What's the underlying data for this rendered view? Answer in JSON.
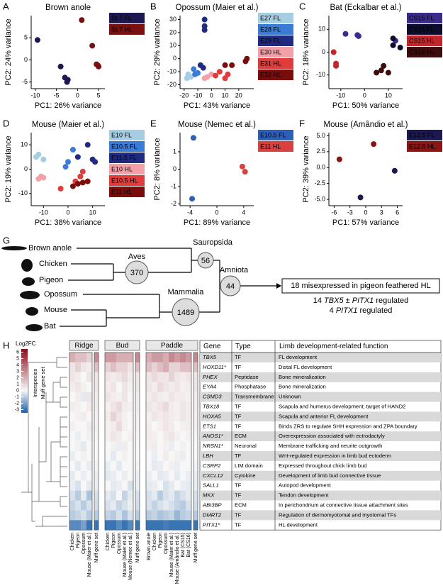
{
  "panel_labels": [
    "A",
    "B",
    "C",
    "D",
    "E",
    "F",
    "G",
    "H"
  ],
  "chart_data": [
    {
      "type": "scatter",
      "title": "Brown anole",
      "x_label": "PC1: 26% variance",
      "y_label": "PC2: 24% variance",
      "xlim": [
        -11,
        6.5
      ],
      "xticks": [
        -10,
        -5,
        0,
        5
      ],
      "ylim": [
        -6.5,
        10
      ],
      "yticks": [
        -5,
        0,
        5
      ],
      "series": [
        {
          "name": "St.7 FL",
          "color": "#1c1850",
          "x": [
            -9.5,
            -4,
            -3,
            -2.5,
            -2.3
          ],
          "y": [
            4.5,
            -1.5,
            -4,
            -5,
            -4.5
          ]
        },
        {
          "name": "St.7 HL",
          "color": "#7a1010",
          "x": [
            1,
            3.5,
            4.5,
            5,
            4.8
          ],
          "y": [
            9,
            3.2,
            -1,
            -1.5,
            -1.2
          ]
        }
      ]
    },
    {
      "type": "scatter",
      "title": "Opossum (Maier et al.)",
      "x_label": "PC1: 43% variance",
      "y_label": "PC2: 29% variance",
      "xlim": [
        -23,
        31
      ],
      "xticks": [
        -20,
        -10,
        0,
        10,
        20
      ],
      "ylim": [
        -23,
        33
      ],
      "yticks": [
        -20,
        -10,
        0,
        10,
        20,
        30
      ],
      "series": [
        {
          "name": "E27 FL",
          "color": "#a6cee3",
          "x": [
            -18,
            -17,
            -15
          ],
          "y": [
            -15,
            -12,
            -14
          ]
        },
        {
          "name": "E28 FL",
          "color": "#3a7bd5",
          "x": [
            -12,
            -10,
            -13
          ],
          "y": [
            -12,
            -11,
            -8
          ]
        },
        {
          "name": "E29 FL",
          "color": "#1f2a80",
          "x": [
            -5,
            -5,
            -5,
            -8,
            -6
          ],
          "y": [
            30,
            25,
            22,
            -5,
            -7
          ]
        },
        {
          "name": "E30 HL",
          "color": "#f4a0a8",
          "x": [
            -5,
            -3,
            0
          ],
          "y": [
            -15,
            -14,
            -12
          ]
        },
        {
          "name": "E31 HL",
          "color": "#e03c3c",
          "x": [
            3,
            6,
            10,
            12
          ],
          "y": [
            -13,
            -10,
            -15,
            -12
          ]
        },
        {
          "name": "E32 HL",
          "color": "#7a0c0c",
          "x": [
            10,
            15,
            25,
            26
          ],
          "y": [
            -5,
            -5,
            -2,
            0
          ]
        }
      ]
    },
    {
      "type": "scatter",
      "title": "Bat (Eckalbar et al.)",
      "x_label": "PC1: 50% variance",
      "y_label": "PC2: 18% variance",
      "xlim": [
        -15,
        16
      ],
      "xticks": [
        -10,
        0,
        10
      ],
      "ylim": [
        -16,
        16
      ],
      "yticks": [
        -10,
        0,
        10
      ],
      "series": [
        {
          "name": "CS15 FL",
          "color": "#3b2b8c",
          "x": [
            -8,
            -3,
            -2.5,
            13
          ],
          "y": [
            8,
            7.5,
            7,
            5
          ]
        },
        {
          "name": "CS16 FL",
          "color": "#0c0c2c",
          "x": [
            12,
            12,
            15
          ],
          "y": [
            6,
            3,
            2
          ]
        },
        {
          "name": "CS15 HL",
          "color": "#c0272d",
          "x": [
            -13,
            -12,
            -12
          ],
          "y": [
            0,
            -5,
            -6
          ]
        },
        {
          "name": "CS16 HL",
          "color": "#3d0c0c",
          "x": [
            5,
            7,
            8,
            10
          ],
          "y": [
            -9,
            -8,
            -6,
            -9
          ]
        }
      ]
    },
    {
      "type": "scatter",
      "title": "Mouse (Maier et al.)",
      "x_label": "PC1: 38% variance",
      "y_label": "PC2: 19% variance",
      "xlim": [
        -15,
        15
      ],
      "xticks": [
        -10,
        0,
        10
      ],
      "ylim": [
        -15,
        15
      ],
      "yticks": [
        -10,
        0,
        10
      ],
      "series": [
        {
          "name": "E10 FL",
          "color": "#a6cee3",
          "x": [
            -13,
            -12,
            -10
          ],
          "y": [
            5,
            6,
            4
          ]
        },
        {
          "name": "E10.5 FL",
          "color": "#3a7bd5",
          "x": [
            -1,
            0,
            2
          ],
          "y": [
            1,
            3,
            8
          ]
        },
        {
          "name": "E11.5 FL",
          "color": "#1f2a80",
          "x": [
            4,
            8,
            10,
            11
          ],
          "y": [
            5,
            10,
            4,
            3
          ]
        },
        {
          "name": "E10 HL",
          "color": "#f4a0a8",
          "x": [
            -11,
            -12,
            -10
          ],
          "y": [
            -3,
            -4,
            -3.5
          ]
        },
        {
          "name": "E10.5 HL",
          "color": "#e03c3c",
          "x": [
            -3,
            3,
            5,
            6
          ],
          "y": [
            -8,
            -5,
            -3,
            -1
          ]
        },
        {
          "name": "E11 HL",
          "color": "#7a0c0c",
          "x": [
            2,
            6,
            8,
            4
          ],
          "y": [
            -7,
            -5.5,
            -5,
            -6
          ]
        }
      ]
    },
    {
      "type": "scatter",
      "title": "Mouse (Nemec et al.)",
      "x_label": "PC1: 89% variance",
      "y_label": "PC2: 8% variance",
      "xlim": [
        -5.5,
        5.5
      ],
      "xticks": [
        -4,
        0,
        4
      ],
      "ylim": [
        -2.1,
        2.1
      ],
      "yticks": [
        -2,
        -1,
        0,
        1
      ],
      "series": [
        {
          "name": "E10.5 FL",
          "color": "#2d5fb8",
          "x": [
            -3.5,
            -3.7
          ],
          "y": [
            1.8,
            -1.7
          ]
        },
        {
          "name": "E11 HL",
          "color": "#d94040",
          "x": [
            3.8,
            4.2
          ],
          "y": [
            0.15,
            -0.15
          ]
        }
      ]
    },
    {
      "type": "scatter",
      "title": "Mouse (Amândio et al.)",
      "x_label": "PC1: 57% variance",
      "y_label": "PC2: 39% variance",
      "xlim": [
        -7,
        7
      ],
      "xticks": [
        -6,
        -3,
        0,
        3,
        6
      ],
      "ylim": [
        -6,
        5.5
      ],
      "yticks": [
        {
          "value": -5,
          "label": "-5.0"
        },
        {
          "value": -2.5,
          "label": "-2.5"
        },
        {
          "value": 0,
          "label": "0.0"
        },
        {
          "value": 2.5,
          "label": "2.5"
        },
        {
          "value": 5,
          "label": "5.0"
        }
      ],
      "series": [
        {
          "name": "E12.5 FL",
          "color": "#1c1850",
          "x": [
            -1,
            5.5
          ],
          "y": [
            -4.7,
            -0.5
          ]
        },
        {
          "name": "E12.5 HL",
          "color": "#8b1414",
          "x": [
            -5,
            1.5
          ],
          "y": [
            1.3,
            3.7
          ]
        }
      ]
    }
  ],
  "tree": {
    "leaves": [
      "Brown anole",
      "Chicken",
      "Pigeon",
      "Opossum",
      "Mouse",
      "Bat"
    ],
    "nodes": [
      {
        "name": "Aves",
        "count": 370
      },
      {
        "name": "Sauropsida",
        "count": 56
      },
      {
        "name": "Mammalia",
        "count": 1489
      },
      {
        "name": "Amniota",
        "count": 44
      }
    ],
    "result": "18 misexpressed in pigeon feathered HL",
    "summary": [
      [
        "14",
        "TBX5",
        "±",
        "PITX1",
        "regulated"
      ],
      [
        "4",
        "PITX1",
        "regulated"
      ]
    ]
  },
  "heatmap": {
    "legend_title": "Log2FC",
    "legend_ticks": [
      6,
      5,
      4,
      3,
      2,
      1,
      0,
      -1,
      -2,
      -3
    ],
    "clim": [
      -3.5,
      6.5
    ],
    "low_color": "#1a5fa8",
    "mid_color": "#f7f7f7",
    "high_color": "#8b0a1a",
    "annotation_labels": [
      "Interspecies",
      "Muff gene set"
    ],
    "muff_label": "Muff gene set",
    "muff_values": [
      3,
      1.5,
      0.5,
      0.5,
      0.3,
      0.3,
      0.2,
      0.2,
      0.1,
      0,
      0,
      -0.1,
      -0.2,
      -0.2,
      -0.5,
      -0.6,
      -1,
      -3
    ],
    "groups": [
      {
        "name": "Ridge",
        "columns": [
          "Chicken",
          "Pigeon",
          "Opossum",
          "Mouse (Maier et al.)"
        ],
        "values": [
          [
            2,
            1.5,
            1.5,
            1
          ],
          [
            0.5,
            1,
            0.5,
            0.3
          ],
          [
            0.5,
            0.3,
            0,
            0.5
          ],
          [
            0.3,
            0.5,
            0.2,
            0
          ],
          [
            0,
            0.3,
            -0.3,
            0.5
          ],
          [
            0.3,
            0.2,
            0,
            0.3
          ],
          [
            0,
            0.2,
            0.3,
            0
          ],
          [
            0.2,
            0,
            0,
            0.3
          ],
          [
            0,
            -0.2,
            0,
            0.2
          ],
          [
            0,
            0.2,
            -0.3,
            0
          ],
          [
            -0.2,
            0,
            0.2,
            0
          ],
          [
            0,
            -0.3,
            0,
            -0.2
          ],
          [
            -0.3,
            0,
            -0.2,
            0
          ],
          [
            -0.2,
            -0.5,
            0,
            -0.3
          ],
          [
            -0.5,
            -1,
            -0.3,
            -1.2
          ],
          [
            -0.8,
            -0.5,
            -1,
            -0.5
          ],
          [
            -1,
            -0.8,
            -0.5,
            -1
          ],
          [
            -2.5,
            -2.5,
            -2,
            -3
          ]
        ]
      },
      {
        "name": "Bud",
        "columns": [
          "Chicken",
          "Pigeon",
          "Opossum",
          "Mouse (Maier et al.)",
          "Mouse (Nemec et al.)"
        ],
        "values": [
          [
            2.5,
            2.5,
            2,
            2,
            2
          ],
          [
            1,
            1.5,
            1,
            1,
            0.5
          ],
          [
            0.5,
            0.3,
            0.5,
            0.8,
            0.3
          ],
          [
            0.3,
            0.5,
            0,
            0.5,
            0.2
          ],
          [
            0.5,
            0.3,
            0.2,
            0.5,
            0
          ],
          [
            0.2,
            0.5,
            0.8,
            0.3,
            0.2
          ],
          [
            0.3,
            1,
            0.5,
            0.2,
            0
          ],
          [
            0.2,
            0.3,
            0.8,
            0.2,
            0
          ],
          [
            0.2,
            0.5,
            0.3,
            0,
            0.2
          ],
          [
            0,
            0.2,
            -0.2,
            0.3,
            0
          ],
          [
            0,
            -0.3,
            0,
            0.2,
            0
          ],
          [
            -0.2,
            0,
            -0.3,
            0,
            0
          ],
          [
            -0.3,
            -0.2,
            0,
            -0.2,
            0
          ],
          [
            0,
            -0.3,
            -0.2,
            0,
            -0.5
          ],
          [
            -0.3,
            -0.5,
            0,
            -0.8,
            -0.3
          ],
          [
            -0.5,
            -0.3,
            -0.8,
            -0.5,
            -0.2
          ],
          [
            -0.8,
            -1,
            -0.5,
            -1.2,
            -0.5
          ],
          [
            -3,
            -3,
            -2.5,
            -3,
            -2.5
          ]
        ]
      },
      {
        "name": "Paddle",
        "columns": [
          "Brown anole",
          "Chicken",
          "Pigeon",
          "Opossum",
          "Mouse (Maier et al.)",
          "Mouse (Amândio et al.)",
          "Bat (CS15)",
          "Bat (CS16)"
        ],
        "values": [
          [
            2,
            2.5,
            2.5,
            2,
            3,
            2.5,
            3,
            2.5
          ],
          [
            1.5,
            1,
            1.5,
            2,
            1,
            1,
            1.5,
            1.5
          ],
          [
            0.5,
            0.8,
            0.5,
            0.5,
            1,
            0.5,
            0.3,
            0.5
          ],
          [
            0.5,
            0.3,
            0.8,
            0.5,
            0.3,
            0.5,
            0.2,
            0.3
          ],
          [
            0.3,
            0.5,
            0.3,
            0.2,
            0.5,
            0.3,
            0.3,
            0.2
          ],
          [
            0.5,
            0.3,
            0.5,
            0.8,
            0.3,
            0.2,
            0.5,
            0.3
          ],
          [
            0.2,
            0.5,
            0.3,
            0.5,
            0.3,
            0.2,
            0.5,
            0.3
          ],
          [
            0.3,
            0,
            0.2,
            0.5,
            0.3,
            0,
            0.2,
            0.3
          ],
          [
            0.3,
            0.2,
            0,
            0.3,
            0.5,
            0.2,
            0,
            0.2
          ],
          [
            0.2,
            0.3,
            0,
            0.2,
            -0.2,
            0,
            0.2,
            0
          ],
          [
            0,
            -0.2,
            0,
            0.3,
            0,
            0.2,
            -0.2,
            0
          ],
          [
            0,
            -0.3,
            -0.2,
            0,
            0.2,
            -0.2,
            0,
            0
          ],
          [
            -0.2,
            0,
            -0.3,
            -0.2,
            0,
            -0.3,
            0,
            -0.2
          ],
          [
            -0.3,
            -0.2,
            0,
            -0.5,
            -0.3,
            0,
            -0.2,
            -0.3
          ],
          [
            -0.5,
            -0.3,
            -1,
            -0.5,
            -0.3,
            -0.8,
            -0.5,
            -0.3
          ],
          [
            -0.5,
            -0.8,
            -0.5,
            -0.3,
            -0.5,
            -0.8,
            -1,
            -0.5
          ],
          [
            -1,
            -0.8,
            -1.2,
            -1,
            -0.8,
            -1.5,
            -1,
            -0.8
          ],
          [
            -3,
            -3,
            -3,
            -2.8,
            -3,
            -3,
            -3,
            -3
          ]
        ]
      }
    ]
  },
  "table": {
    "header": [
      "Gene",
      "Type",
      "Limb development-related function"
    ],
    "rows": [
      [
        "TBX5",
        "TF",
        "FL development"
      ],
      [
        "HOXD11*",
        "TF",
        "Distal FL development"
      ],
      [
        "PHEX",
        "Peptidase",
        "Bone mineralization"
      ],
      [
        "EYA4",
        "Phosphatase",
        "Bone mineralization"
      ],
      [
        "CSMD3",
        "Transmembrane",
        "Unknown"
      ],
      [
        "TBX18",
        "TF",
        "Scapula and humerus development; target of HAND2"
      ],
      [
        "HOXA5",
        "TF",
        "Scapula and anterior FL development"
      ],
      [
        "ETS1",
        "TF",
        "Binds ZRS to regulate SHH expression and ZPA boundary"
      ],
      [
        "ANOS1*",
        "ECM",
        "Overexpression associated with ectrodactyly"
      ],
      [
        "NRSN1*",
        "Neuronal",
        "Membrane trafficking and neurite outgrowth"
      ],
      [
        "LBH",
        "TF",
        "Wnt-regulated expression in limb bud ectoderm"
      ],
      [
        "CSRP2",
        "LIM domain",
        "Expressed throughout chick limb bud"
      ],
      [
        "CXCL12",
        "Cytokine",
        "Development of limb bud connective tissue"
      ],
      [
        "SALL1",
        "TF",
        "Autopod development"
      ],
      [
        "MKX",
        "TF",
        "Tendon development"
      ],
      [
        "ABI3BP",
        "ECM",
        "In perichondrium at connective tissue attachment sites"
      ],
      [
        "DMRT2",
        "TF",
        "Regulation of dermomyotomal and myotomal TFs"
      ],
      [
        "PITX1*",
        "TF",
        "HL development"
      ]
    ]
  }
}
